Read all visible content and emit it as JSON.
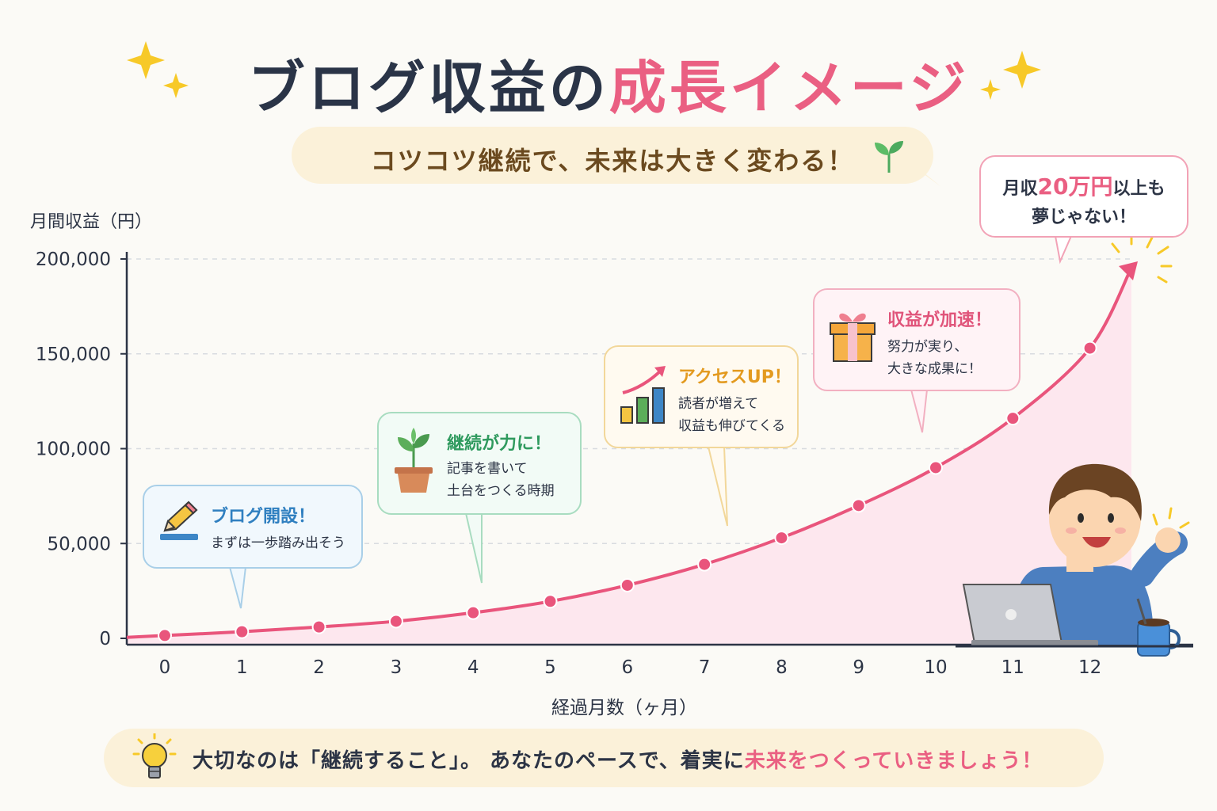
{
  "title": {
    "part1": "ブログ収益の",
    "part2": "成長イメージ"
  },
  "subtitle": "コツコツ継続で、未来は大きく変わる！",
  "goal_bubble": {
    "prefix": "月収",
    "amount": "20万円",
    "suffix": "以上も",
    "line2": "夢じゃない！"
  },
  "callouts": [
    {
      "icon": "pencil-icon",
      "title": "ブログ開設！",
      "body": "まずは一歩踏み出そう",
      "color": "#2f7fc0",
      "border": "#a9cfe8",
      "bg": "#f1f8fd"
    },
    {
      "icon": "sprout-pot-icon",
      "title": "継続が力に！",
      "body": "記事を書いて\n土台をつくる時期",
      "color": "#2f9a5e",
      "border": "#a8dcc0",
      "bg": "#f2fbf6"
    },
    {
      "icon": "rising-bars-icon",
      "title": "アクセスUP！",
      "body": "読者が増えて\n収益も伸びてくる",
      "color": "#e39a1f",
      "border": "#f2d79a",
      "bg": "#fffaf0"
    },
    {
      "icon": "gift-icon",
      "title": "収益が加速！",
      "body": "努力が実り、\n大きな成果に！",
      "color": "#e0547a",
      "border": "#f2b0c1",
      "bg": "#fff3f6"
    }
  ],
  "tip": {
    "icon": "lightbulb-icon",
    "text_main": "大切なのは「継続すること」。 あなたのペースで、着実に",
    "text_highlight": "未来をつくっていきましょう！"
  },
  "chart_data": {
    "type": "line",
    "ylabel": "月間収益（円）",
    "xlabel": "経過月数（ヶ月）",
    "x": [
      0,
      1,
      2,
      3,
      4,
      5,
      6,
      7,
      8,
      9,
      10,
      11,
      12
    ],
    "series": [
      {
        "values": [
          1500,
          3500,
          6000,
          9000,
          13500,
          19500,
          28000,
          39000,
          53000,
          70000,
          90000,
          116000,
          153000
        ]
      }
    ],
    "yticks": [
      0,
      50000,
      100000,
      150000,
      200000
    ],
    "ytick_labels": [
      "0",
      "50,000",
      "100,000",
      "150,000",
      "200,000"
    ],
    "xtick_labels": [
      "0",
      "1",
      "2",
      "3",
      "4",
      "5",
      "6",
      "7",
      "8",
      "9",
      "10",
      "11",
      "12"
    ],
    "ylim": [
      0,
      200000
    ],
    "grid": "horizontal dashed",
    "line_color": "#e9557c",
    "fill_color": "#fde7ee"
  }
}
